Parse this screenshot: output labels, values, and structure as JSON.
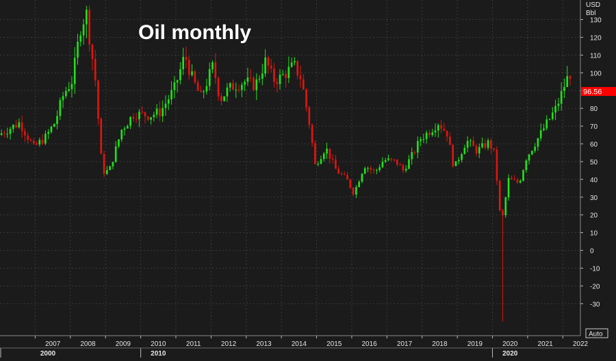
{
  "chart_data": {
    "type": "candlestick",
    "title": "Oil monthly",
    "unit_label_line1": "USD",
    "unit_label_line2": "Bbl",
    "last_price_label": "96.56",
    "last_price": 96.56,
    "scale_button": "Auto",
    "ylim": [
      -48,
      141
    ],
    "y_ticks": [
      130,
      120,
      110,
      100,
      90,
      80,
      70,
      60,
      50,
      40,
      30,
      20,
      10,
      0,
      -10,
      -20,
      -30
    ],
    "x_start": 2006.0,
    "x_end": 2022.5,
    "x_year_ticks": [
      "2007",
      "2008",
      "2009",
      "2010",
      "2011",
      "2012",
      "2013",
      "2014",
      "2015",
      "2016",
      "2017",
      "2018",
      "2019",
      "2020",
      "2021",
      "2022"
    ],
    "x_decade_ticks": [
      {
        "year": 2000,
        "label": "2000"
      },
      {
        "year": 2010,
        "label": "2010"
      },
      {
        "year": 2020,
        "label": "2020"
      }
    ],
    "grid": true,
    "colors": {
      "background": "#1b1b1b",
      "grid": "#3a3a3a",
      "up": "#22e11b",
      "down": "#e0150f",
      "last_price_bg": "#ff0000",
      "text": "#e6e6e6",
      "title": "#ffffff"
    },
    "series_anchor_dates": [
      2006.0,
      2006.6,
      2007.0,
      2007.35,
      2007.6,
      2007.85,
      2008.1,
      2008.35,
      2008.5,
      2008.75,
      2008.95,
      2009.15,
      2009.5,
      2009.85,
      2010.3,
      2010.6,
      2011.0,
      2011.3,
      2011.5,
      2011.75,
      2012.1,
      2012.3,
      2012.5,
      2012.7,
      2013.0,
      2013.3,
      2013.6,
      2013.8,
      2014.0,
      2014.4,
      2014.6,
      2014.85,
      2015.0,
      2015.3,
      2015.6,
      2015.9,
      2016.1,
      2016.4,
      2016.7,
      2016.95,
      2017.3,
      2017.5,
      2017.8,
      2018.0,
      2018.3,
      2018.5,
      2018.75,
      2018.95,
      2019.3,
      2019.6,
      2019.95,
      2020.1,
      2020.25,
      2020.33,
      2020.5,
      2020.8,
      2021.0,
      2021.3,
      2021.6,
      2021.85,
      2022.0,
      2022.15
    ],
    "series_anchor_values": [
      65,
      72,
      58,
      64,
      72,
      88,
      96,
      128,
      133,
      96,
      44,
      45,
      68,
      77,
      76,
      78,
      91,
      110,
      97,
      86,
      104,
      85,
      90,
      93,
      95,
      93,
      107,
      96,
      97,
      104,
      97,
      70,
      48,
      58,
      45,
      40,
      32,
      48,
      44,
      51,
      50,
      45,
      55,
      63,
      68,
      72,
      66,
      46,
      62,
      56,
      61,
      54,
      22,
      19,
      40,
      38,
      52,
      62,
      72,
      80,
      88,
      96.56
    ]
  }
}
